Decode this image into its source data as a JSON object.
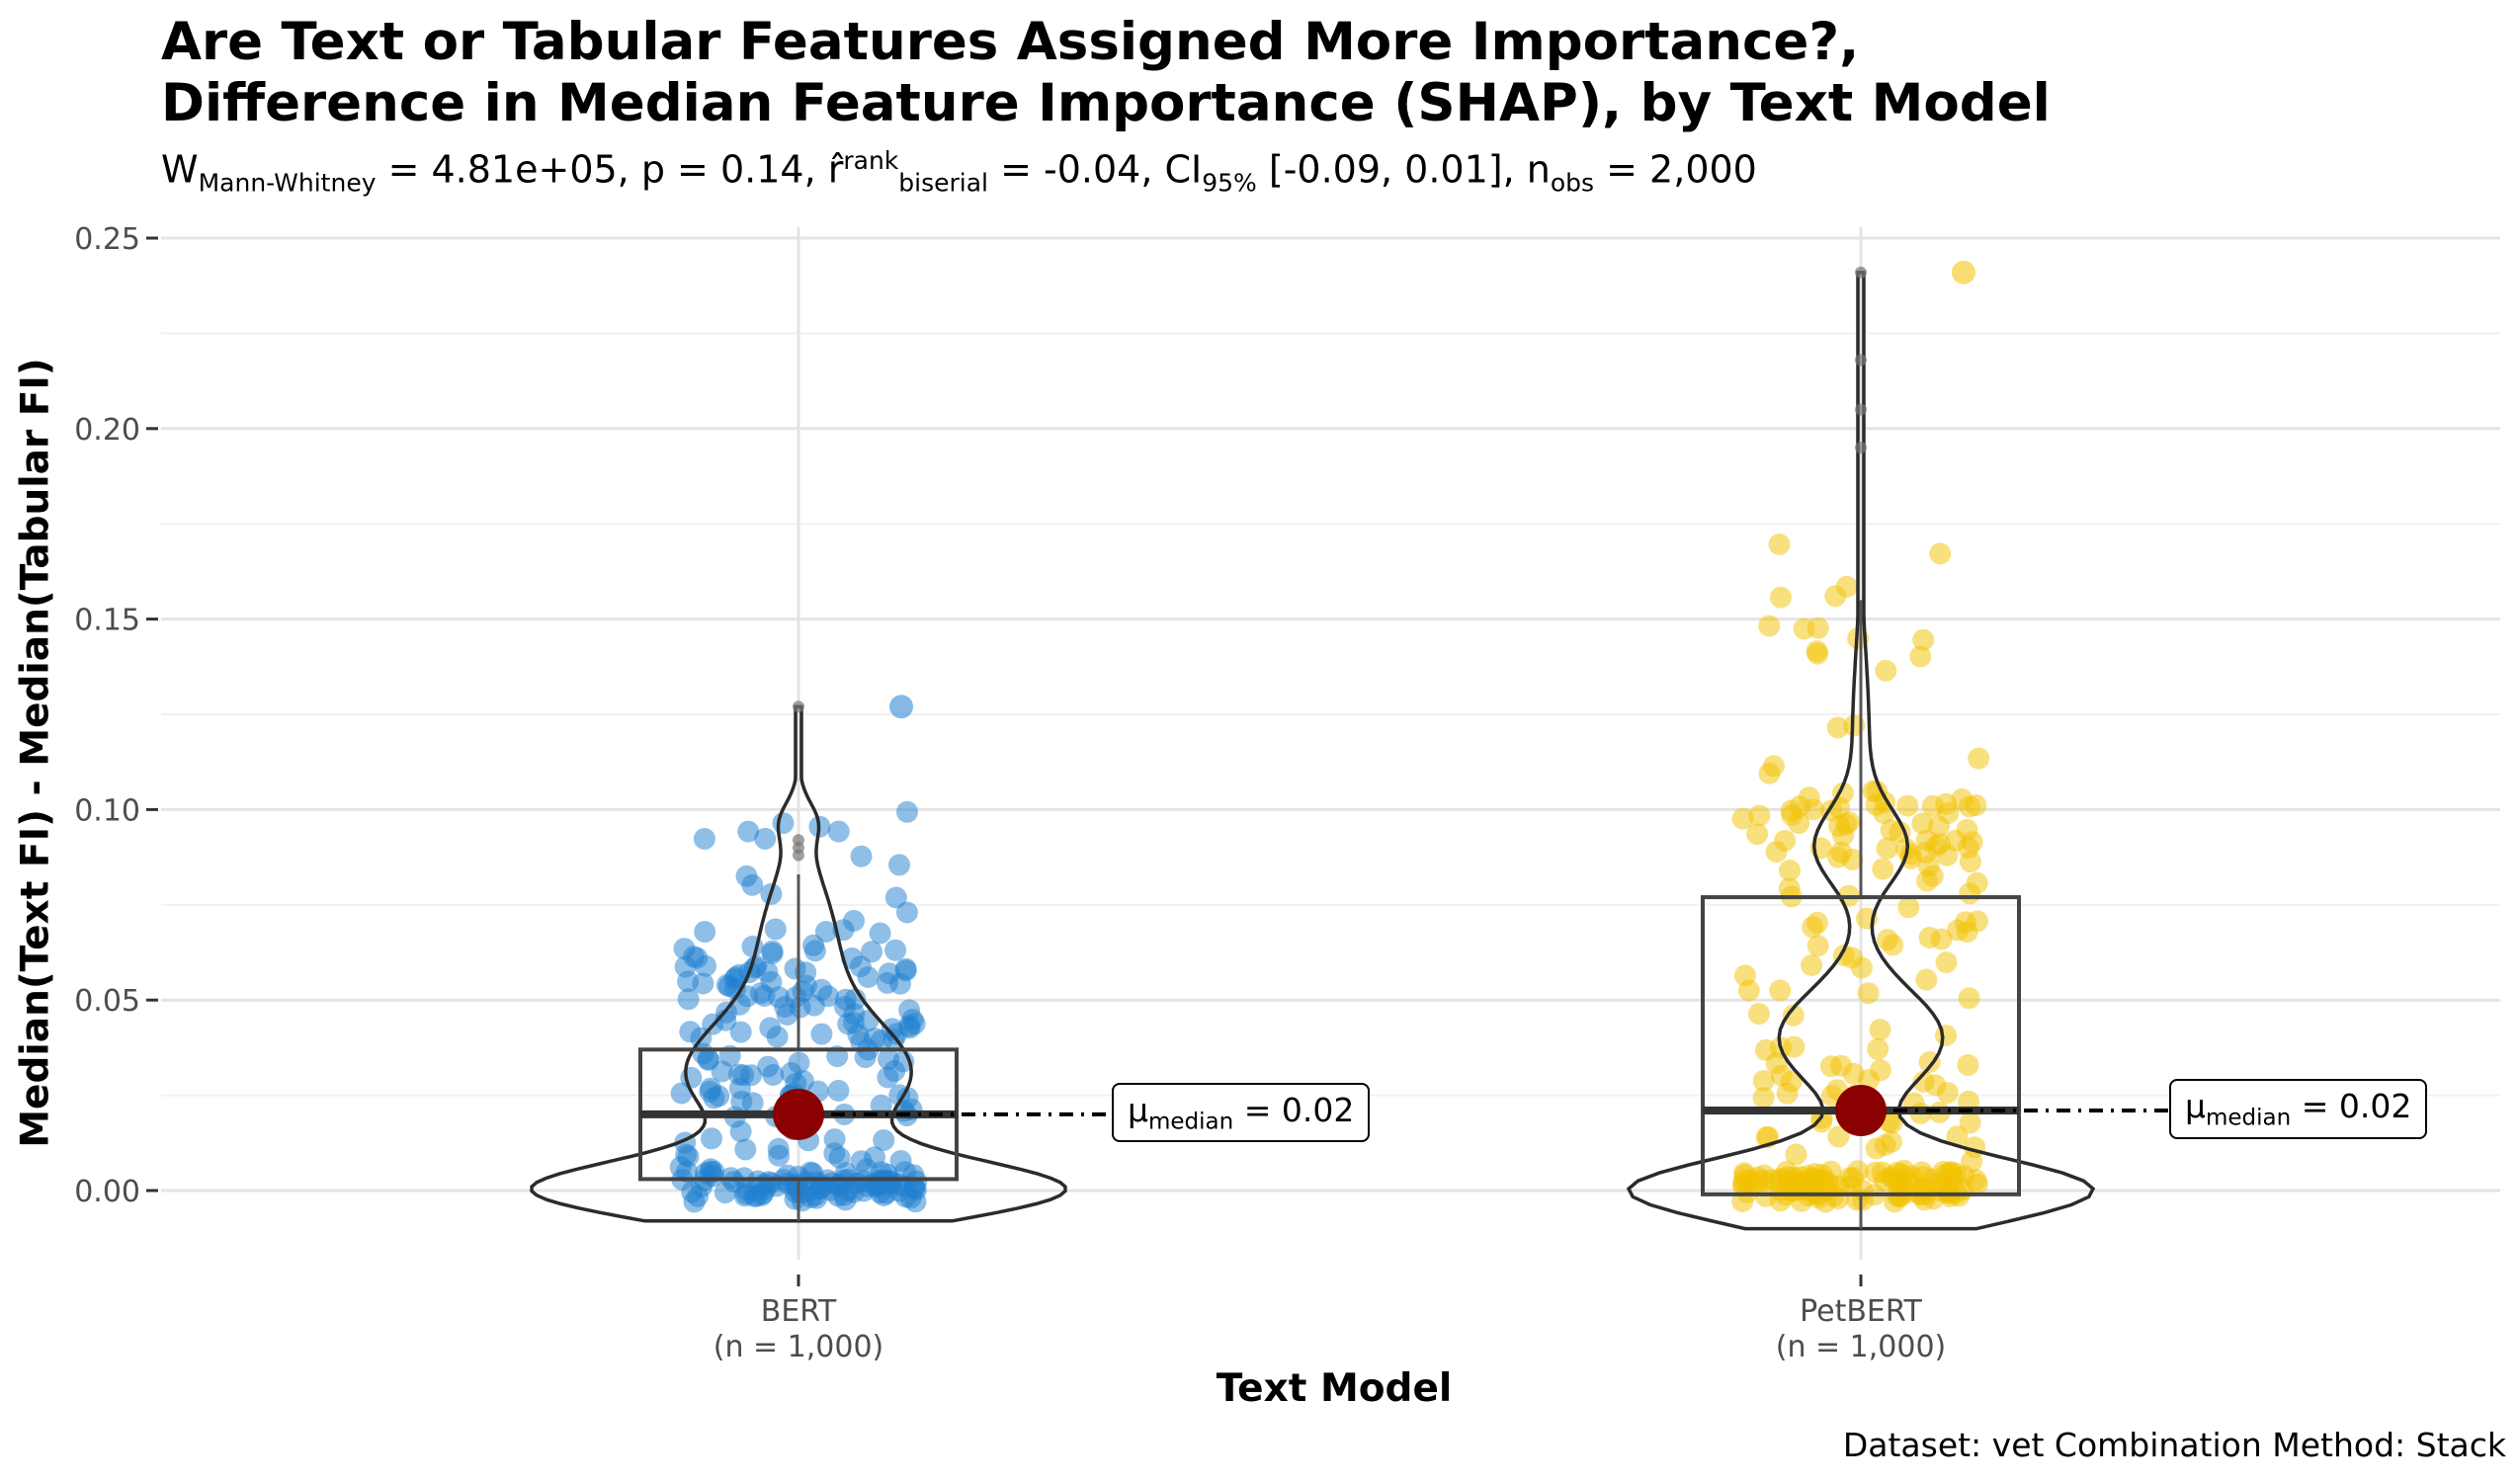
{
  "chart_data": {
    "type": "violin-box-scatter",
    "title_line1": "Are Text or Tabular Features Assigned More Importance?,",
    "title_line2": "Difference in Median Feature Importance (SHAP), by Text Model",
    "subtitle": {
      "w_sym": "W",
      "w_sub": "Mann-Whitney",
      "w_val": " = 4.81e+05, p = 0.14, ",
      "r_sym": "r̂",
      "r_sup": "rank",
      "r_sub": "biserial",
      "r_val": " = -0.04, CI",
      "ci_sub": "95%",
      "ci_val": " [-0.09, 0.01], n",
      "n_sub": "obs",
      "n_val": " = 2,000"
    },
    "xlabel": "Text Model",
    "ylabel": "Median(Text FI) - Median(Tabular FI)",
    "caption": "Dataset: vet Combination Method:  Stack",
    "ylim": [
      -0.02,
      0.255
    ],
    "yticks": [
      "0.00",
      "0.05",
      "0.10",
      "0.15",
      "0.20",
      "0.25"
    ],
    "grid": true,
    "groups": [
      {
        "name": "BERT",
        "tick_line1": "BERT",
        "tick_line2": "(n = 1,000)",
        "color": "#1f7fcf",
        "n": 1000,
        "median": 0.02,
        "q1": 0.003,
        "q3": 0.037,
        "whisker_low": -0.008,
        "whisker_high": 0.083,
        "max": 0.127,
        "outliers": [
          0.088,
          0.09,
          0.092,
          0.127
        ],
        "label_prefix": "μ",
        "label_sub": "median",
        "label_val": " = 0.02",
        "scatter_max": 0.127
      },
      {
        "name": "PetBERT",
        "tick_line1": "PetBERT",
        "tick_line2": "(n = 1,000)",
        "color": "#f2c100",
        "n": 1000,
        "median": 0.021,
        "q1": -0.001,
        "q3": 0.077,
        "whisker_low": -0.01,
        "whisker_high": 0.155,
        "max": 0.241,
        "outliers": [
          0.195,
          0.205,
          0.218,
          0.241
        ],
        "label_prefix": "μ",
        "label_sub": "median",
        "label_val": " = 0.02",
        "scatter_max": 0.241
      }
    ],
    "mean_point_color": "#8b0000"
  }
}
